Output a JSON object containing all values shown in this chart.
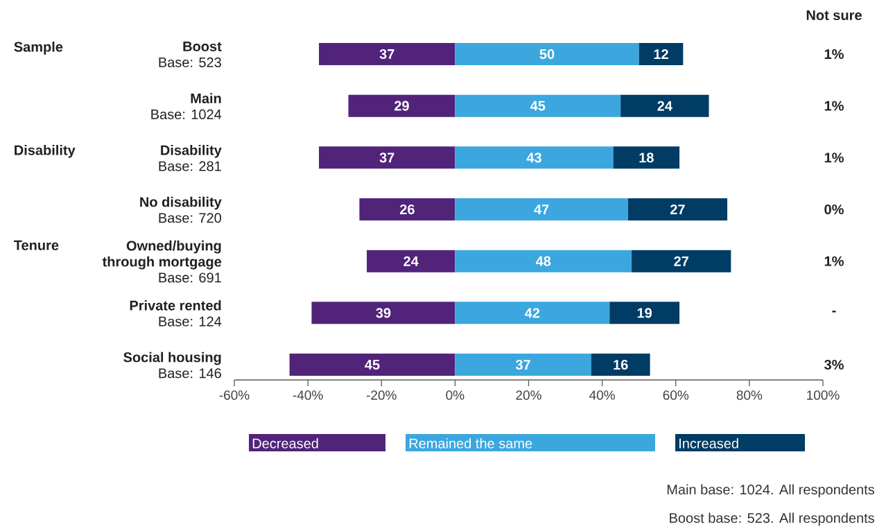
{
  "chart_data": {
    "type": "bar",
    "orientation": "horizontal",
    "categories": [
      "Boost",
      "Main",
      "Disability",
      "No disability",
      "Owned/buying through mortgage",
      "Private rented",
      "Social housing"
    ],
    "series": [
      {
        "name": "Decreased",
        "color": "#51247a",
        "base": [
          -37,
          -29,
          -37,
          -26,
          -24,
          -39,
          -45
        ],
        "values": [
          37,
          29,
          37,
          26,
          24,
          39,
          45
        ]
      },
      {
        "name": "Remained the same",
        "color": "#3ca7de",
        "base": [
          0,
          0,
          0,
          0,
          0,
          0,
          0
        ],
        "values": [
          50,
          45,
          43,
          47,
          48,
          42,
          37
        ]
      },
      {
        "name": "Increased",
        "color": "#003c64",
        "base": [
          50,
          45,
          43,
          47,
          48,
          42,
          37
        ],
        "values": [
          12,
          24,
          18,
          27,
          27,
          19,
          16
        ]
      }
    ],
    "data_labels": true,
    "xlim": [
      -60,
      100
    ],
    "xticks": [
      {
        "value": -60,
        "label": "-60%"
      },
      {
        "value": -40,
        "label": "-40%"
      },
      {
        "value": -20,
        "label": "-20%"
      },
      {
        "value": 0,
        "label": "0%"
      },
      {
        "value": 20,
        "label": "20%"
      },
      {
        "value": 40,
        "label": "40%"
      },
      {
        "value": 60,
        "label": "60%"
      },
      {
        "value": 80,
        "label": "80%"
      },
      {
        "value": 100,
        "label": "100%"
      }
    ],
    "legend": "bottom",
    "annotations": [
      "Sample",
      "Disability",
      "Tenure",
      "Base: 523",
      "Base: 1024",
      "Base: 281",
      "Base: 720",
      "Base: 691",
      "Base: 124",
      "Base: 146",
      "Not sure",
      "1%",
      "1%",
      "1%",
      "0%",
      "1%",
      "-",
      "3%",
      "Main base: 1024. All respondents",
      "Boost base: 523. All respondents"
    ]
  }
}
